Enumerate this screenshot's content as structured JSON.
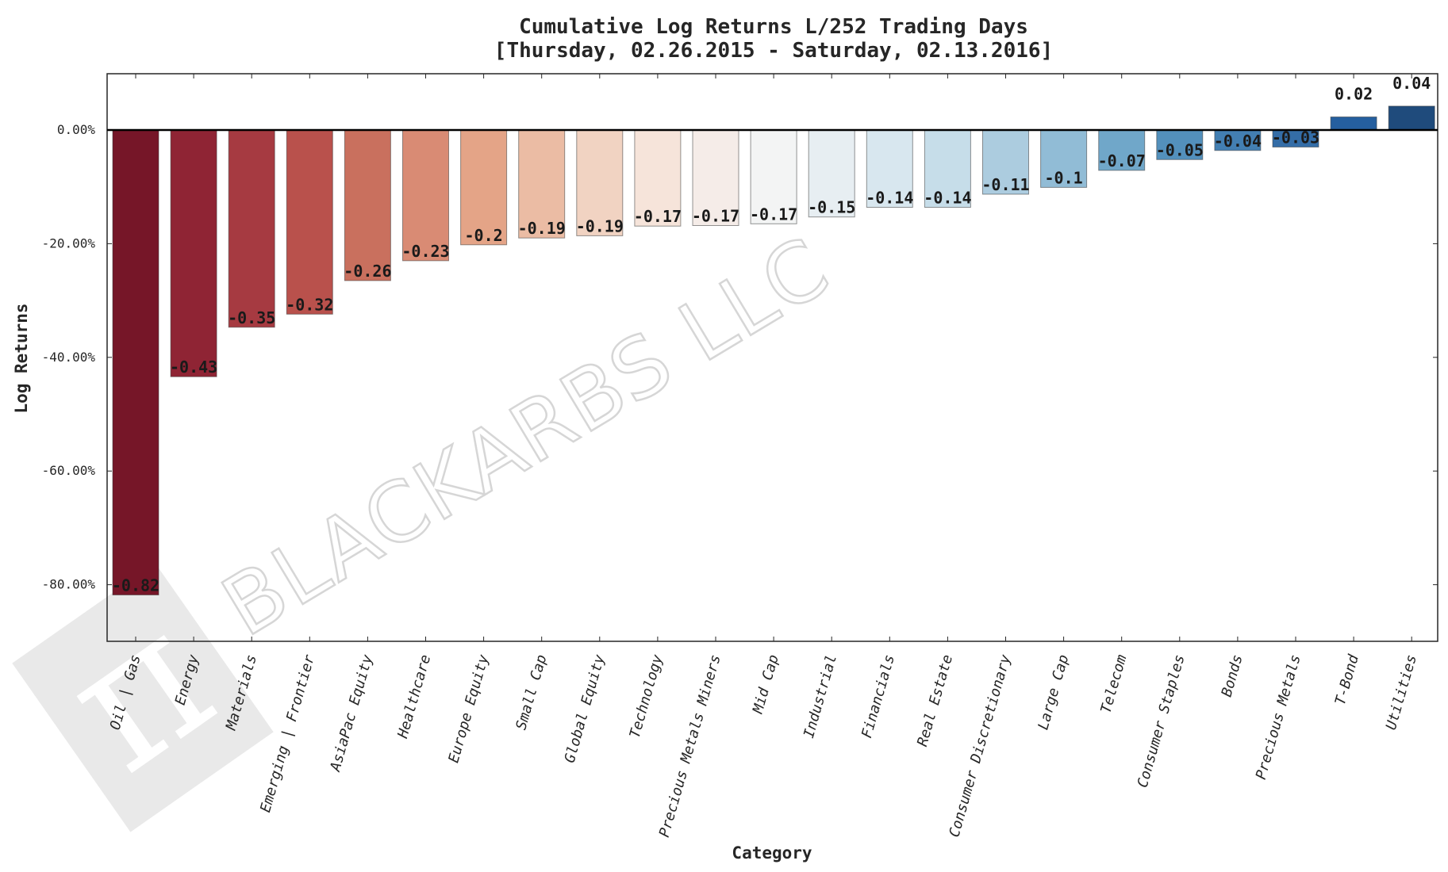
{
  "chart_data": {
    "type": "bar",
    "title": "Cumulative Log Returns L/252 Trading Days",
    "subtitle": "[Thursday, 02.26.2015 - Saturday, 02.13.2016]",
    "xlabel": "Category",
    "ylabel": "Log Returns",
    "ylim": [
      -0.9,
      0.1
    ],
    "yticks": [
      0.0,
      -0.2,
      -0.4,
      -0.6,
      -0.8
    ],
    "ytick_labels": [
      "0.00%",
      "-20.00%",
      "-40.00%",
      "-60.00%",
      "-80.00%"
    ],
    "grid": false,
    "categories": [
      "Oil | Gas",
      "Energy",
      "Materials",
      "Emerging | Frontier",
      "AsiaPac Equity",
      "Healthcare",
      "Europe Equity",
      "Small Cap",
      "Global Equity",
      "Technology",
      "Precious Metals Miners",
      "Mid Cap",
      "Industrial",
      "Financials",
      "Real Estate",
      "Consumer Discretionary",
      "Large Cap",
      "Telecom",
      "Consumer Staples",
      "Bonds",
      "Precious Metals",
      "T-Bond",
      "Utilities"
    ],
    "values": [
      -0.818,
      -0.434,
      -0.347,
      -0.324,
      -0.265,
      -0.23,
      -0.202,
      -0.19,
      -0.186,
      -0.169,
      -0.168,
      -0.165,
      -0.153,
      -0.136,
      -0.136,
      -0.113,
      -0.101,
      -0.071,
      -0.052,
      -0.036,
      -0.03,
      0.023,
      0.042
    ],
    "data_labels": [
      "-0.82",
      "-0.43",
      "-0.35",
      "-0.32",
      "-0.26",
      "-0.23",
      "-0.2",
      "-0.19",
      "-0.19",
      "-0.17",
      "-0.17",
      "-0.17",
      "-0.15",
      "-0.14",
      "-0.14",
      "-0.11",
      "-0.1",
      "-0.07",
      "-0.05",
      "-0.04",
      "-0.03",
      "0.02",
      "0.04"
    ],
    "colors": [
      "#761628",
      "#8f2434",
      "#a63a41",
      "#b9514c",
      "#c9705e",
      "#d98b74",
      "#e4a487",
      "#ebbca4",
      "#f1d3c2",
      "#f6e4da",
      "#f5ece8",
      "#f3f4f4",
      "#e7eef2",
      "#d8e7ef",
      "#c6dde9",
      "#acccdf",
      "#91bcd6",
      "#70a7c9",
      "#5390bc",
      "#437fb2",
      "#346da7",
      "#255f9f",
      "#1f4b7c"
    ]
  },
  "watermark": {
    "text": "BLACKARBS LLC",
    "symbol": "π"
  }
}
